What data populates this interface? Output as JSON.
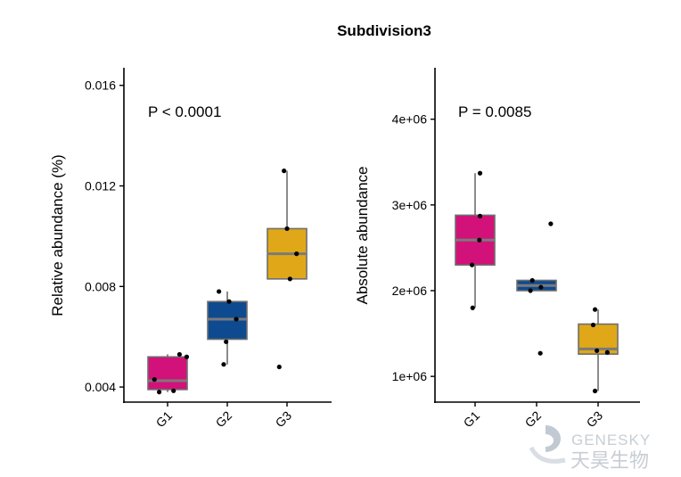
{
  "title": "Subdivision3",
  "watermark": {
    "latin": "GENESKY",
    "cjk": "天昊生物"
  },
  "colors": {
    "G1": "#D3117A",
    "G2": "#0E4A8F",
    "G3": "#E0A818",
    "median": "#7A7A7A",
    "whisker": "#6E6E6E",
    "point": "#000000"
  },
  "chart_data": [
    {
      "type": "box",
      "title": "Subdivision3",
      "ylabel": "Relative abundance (%)",
      "xlabel": "",
      "annotation": "P < 0.0001",
      "ylim": [
        0.0034,
        0.0167
      ],
      "yticks": [
        0.004,
        0.008,
        0.012,
        0.016
      ],
      "ytick_labels": [
        "0.004",
        "0.008",
        "0.012",
        "0.016"
      ],
      "categories": [
        "G1",
        "G2",
        "G3"
      ],
      "grid": false,
      "legend": "none",
      "boxes": [
        {
          "group": "G1",
          "whisker_low": 0.0038,
          "q1": 0.0039,
          "median": 0.00425,
          "q3": 0.0052,
          "whisker_high": 0.0053,
          "points": [
            {
              "y": 0.0053,
              "jitter": 0.2
            },
            {
              "y": 0.0052,
              "jitter": 0.32
            },
            {
              "y": 0.0043,
              "jitter": -0.22
            },
            {
              "y": 0.0038,
              "jitter": -0.14
            },
            {
              "y": 0.00385,
              "jitter": 0.1
            }
          ]
        },
        {
          "group": "G2",
          "whisker_low": 0.0049,
          "q1": 0.0059,
          "median": 0.0067,
          "q3": 0.0074,
          "whisker_high": 0.0078,
          "points": [
            {
              "y": 0.0078,
              "jitter": -0.14
            },
            {
              "y": 0.0074,
              "jitter": 0.03
            },
            {
              "y": 0.0067,
              "jitter": 0.15
            },
            {
              "y": 0.0058,
              "jitter": -0.02
            },
            {
              "y": 0.0049,
              "jitter": -0.06
            }
          ]
        },
        {
          "group": "G3",
          "whisker_low": 0.0083,
          "q1": 0.0083,
          "median": 0.0093,
          "q3": 0.0103,
          "whisker_high": 0.0126,
          "points": [
            {
              "y": 0.0126,
              "jitter": -0.05
            },
            {
              "y": 0.0103,
              "jitter": 0.0
            },
            {
              "y": 0.0093,
              "jitter": 0.16
            },
            {
              "y": 0.0083,
              "jitter": 0.05
            },
            {
              "y": 0.0048,
              "jitter": -0.13
            }
          ]
        }
      ]
    },
    {
      "type": "box",
      "title": "",
      "ylabel": "Absolute abundance",
      "xlabel": "",
      "annotation": "P = 0.0085",
      "ylim": [
        700000,
        4600000
      ],
      "yticks": [
        1000000,
        2000000,
        3000000,
        4000000
      ],
      "ytick_labels": [
        "1e+06",
        "2e+06",
        "3e+06",
        "4e+06"
      ],
      "categories": [
        "G1",
        "G2",
        "G3"
      ],
      "grid": false,
      "legend": "none",
      "boxes": [
        {
          "group": "G1",
          "whisker_low": 1800000,
          "q1": 2300000,
          "median": 2590000,
          "q3": 2880000,
          "whisker_high": 3370000,
          "points": [
            {
              "y": 3370000,
              "jitter": 0.08
            },
            {
              "y": 2870000,
              "jitter": 0.08
            },
            {
              "y": 2590000,
              "jitter": 0.07
            },
            {
              "y": 2300000,
              "jitter": -0.05
            },
            {
              "y": 1800000,
              "jitter": -0.04
            }
          ]
        },
        {
          "group": "G2",
          "whisker_low": 2000000,
          "q1": 2000000,
          "median": 2060000,
          "q3": 2120000,
          "whisker_high": 2120000,
          "points": [
            {
              "y": 2780000,
              "jitter": 0.23
            },
            {
              "y": 2120000,
              "jitter": -0.07
            },
            {
              "y": 2040000,
              "jitter": 0.07
            },
            {
              "y": 2000000,
              "jitter": -0.1
            },
            {
              "y": 1270000,
              "jitter": 0.06
            }
          ]
        },
        {
          "group": "G3",
          "whisker_low": 830000,
          "q1": 1260000,
          "median": 1320000,
          "q3": 1610000,
          "whisker_high": 1780000,
          "points": [
            {
              "y": 1780000,
              "jitter": -0.05
            },
            {
              "y": 1600000,
              "jitter": -0.08
            },
            {
              "y": 1300000,
              "jitter": -0.02
            },
            {
              "y": 1280000,
              "jitter": 0.15
            },
            {
              "y": 830000,
              "jitter": -0.05
            }
          ]
        }
      ]
    }
  ]
}
